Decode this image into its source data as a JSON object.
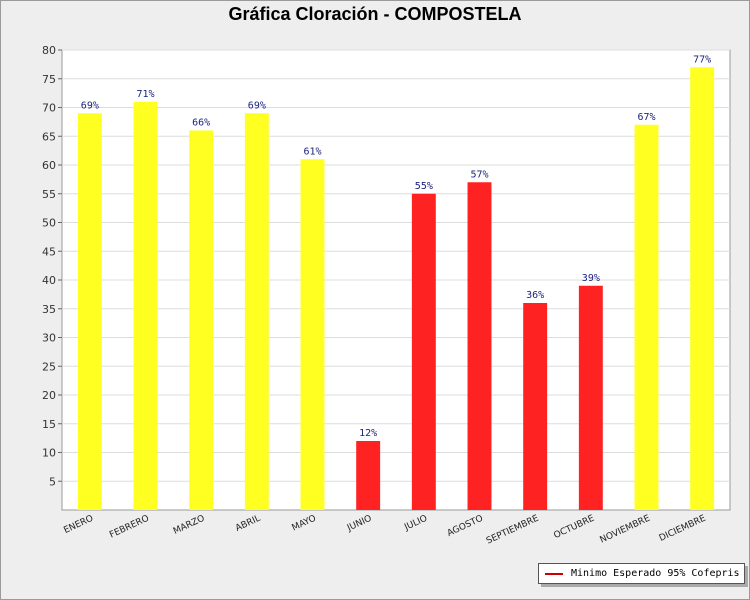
{
  "chart_data": {
    "type": "bar",
    "title": "Gráfica Cloración - COMPOSTELA",
    "xlabel": "",
    "ylabel": "",
    "ylim": [
      0,
      80
    ],
    "yticks": [
      5,
      10,
      15,
      20,
      25,
      30,
      35,
      40,
      45,
      50,
      55,
      60,
      65,
      70,
      75,
      80
    ],
    "categories": [
      "ENERO",
      "FEBRERO",
      "MARZO",
      "ABRIL",
      "MAYO",
      "JUNIO",
      "JULIO",
      "AGOSTO",
      "SEPTIEMBRE",
      "OCTUBRE",
      "NOVIEMBRE",
      "DICIEMBRE"
    ],
    "values": [
      69,
      71,
      66,
      69,
      61,
      12,
      55,
      57,
      36,
      39,
      67,
      77
    ],
    "data_labels": [
      "69%",
      "71%",
      "66%",
      "69%",
      "61%",
      "12%",
      "55%",
      "57%",
      "36%",
      "39%",
      "67%",
      "77%"
    ],
    "bar_colors": [
      "#ffff22",
      "#ffff22",
      "#ffff22",
      "#ffff22",
      "#ffff22",
      "#ff2222",
      "#ff2222",
      "#ff2222",
      "#ff2222",
      "#ff2222",
      "#ffff22",
      "#ffff22"
    ],
    "grid": true,
    "legend": {
      "placement": "bottom-right",
      "entries": [
        {
          "label": "Minimo Esperado 95% Cofepris",
          "color": "#cc0000"
        }
      ]
    }
  }
}
